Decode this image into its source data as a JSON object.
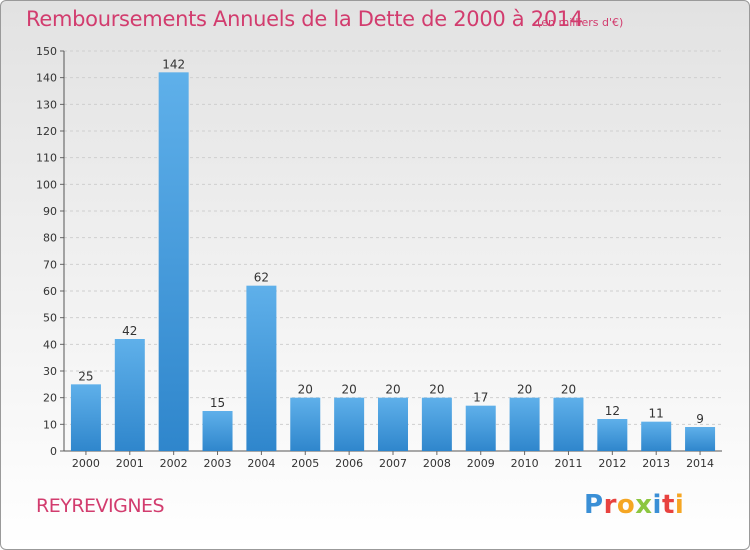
{
  "header": {
    "title": "Remboursements Annuels de la Dette de 2000 à 2014",
    "subtitle": "(en milliers d'€)"
  },
  "footer": {
    "commune": "REYREVIGNES",
    "logo_letters": [
      {
        "ch": "P",
        "color": "#3a8fd6"
      },
      {
        "ch": "r",
        "color": "#e8423f"
      },
      {
        "ch": "o",
        "color": "#f5a623"
      },
      {
        "ch": "x",
        "color": "#8cc63f"
      },
      {
        "ch": "i",
        "color": "#3a8fd6"
      },
      {
        "ch": "t",
        "color": "#e8423f"
      },
      {
        "ch": "i",
        "color": "#f5a623"
      }
    ]
  },
  "chart_data": {
    "type": "bar",
    "title": "Remboursements Annuels de la Dette de 2000 à 2014",
    "subtitle": "(en milliers d'€)",
    "categories": [
      "2000",
      "2001",
      "2002",
      "2003",
      "2004",
      "2005",
      "2006",
      "2007",
      "2008",
      "2009",
      "2010",
      "2011",
      "2012",
      "2013",
      "2014"
    ],
    "values": [
      25,
      42,
      142,
      15,
      62,
      20,
      20,
      20,
      20,
      17,
      20,
      20,
      12,
      11,
      9
    ],
    "ylim": [
      0,
      150
    ],
    "yticks": [
      0,
      10,
      20,
      30,
      40,
      50,
      60,
      70,
      80,
      90,
      100,
      110,
      120,
      130,
      140,
      150
    ],
    "grid": true,
    "bar_color": "#4a9fe0",
    "legend": "none"
  }
}
